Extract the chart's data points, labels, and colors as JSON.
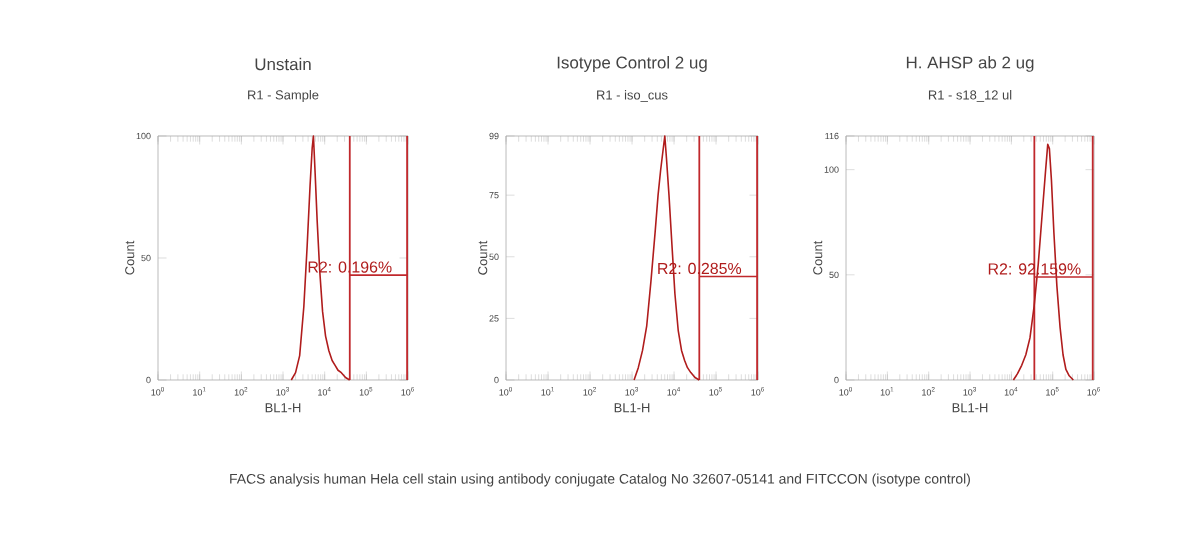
{
  "chart_data": [
    {
      "type": "line",
      "title": "Unstain",
      "subtitle": "R1 - Sample",
      "xlabel": "BL1-H",
      "ylabel": "Count",
      "log": "x",
      "xlim": [
        1,
        1000000
      ],
      "ylim": [
        0,
        100
      ],
      "xticks": [
        {
          "value": 1,
          "label": "10$^{0}$"
        },
        {
          "value": 10,
          "label": "10$^{1}$"
        },
        {
          "value": 100,
          "label": "10$^{2}$"
        },
        {
          "value": 1000,
          "label": "10$^{3}$"
        },
        {
          "value": 10000,
          "label": "10$^{4}$"
        },
        {
          "value": 100000,
          "label": "10$^{5}$"
        },
        {
          "value": 1000000,
          "label": "10$^{6}$"
        }
      ],
      "yticks": [
        0,
        50,
        100
      ],
      "series": [
        {
          "color": "#b01c1c",
          "x": [
            1580,
            2000,
            2510,
            3160,
            3800,
            4470,
            5010,
            5370,
            5890,
            6610,
            7590,
            8910,
            10500,
            12600,
            15100,
            17800,
            20900,
            25100,
            31600,
            39800
          ],
          "values": [
            0,
            3,
            10,
            30,
            55,
            80,
            95,
            100,
            85,
            65,
            45,
            28,
            18,
            12,
            8,
            6,
            4,
            3,
            1,
            0
          ]
        },
        {
          "color": "#c0282c",
          "x": [
            40000,
            950000
          ],
          "values": [
            43,
            43
          ]
        }
      ],
      "ref_lines": [
        {
          "axis": "x",
          "value": 40000,
          "color": "#c0282c"
        },
        {
          "axis": "x",
          "value": 950000,
          "color": "#c0282c"
        }
      ],
      "annotations": [
        "R2: 0.196%"
      ]
    },
    {
      "type": "line",
      "title": "Isotype Control 2 ug",
      "subtitle": "R1 - iso_cus",
      "xlabel": "BL1-H",
      "ylabel": "Count",
      "log": "x",
      "xlim": [
        1,
        1000000
      ],
      "ylim": [
        0,
        99
      ],
      "xticks": [
        {
          "value": 1,
          "label": "10$^{0}$"
        },
        {
          "value": 10,
          "label": "10$^{1}$"
        },
        {
          "value": 100,
          "label": "10$^{2}$"
        },
        {
          "value": 1000,
          "label": "10$^{3}$"
        },
        {
          "value": 10000,
          "label": "10$^{4}$"
        },
        {
          "value": 100000,
          "label": "10$^{5}$"
        },
        {
          "value": 1000000,
          "label": "10$^{6}$"
        }
      ],
      "yticks": [
        0,
        25,
        50,
        75,
        99
      ],
      "series": [
        {
          "color": "#b01c1c",
          "x": [
            1120,
            1410,
            1780,
            2240,
            2820,
            3550,
            4170,
            4790,
            5370,
            6030,
            6610,
            7590,
            8910,
            10500,
            12600,
            15100,
            17800,
            20900,
            25100,
            31600,
            39800
          ],
          "values": [
            0,
            5,
            12,
            22,
            40,
            60,
            75,
            85,
            92,
            99,
            90,
            75,
            55,
            35,
            20,
            12,
            8,
            5,
            3,
            1,
            0
          ]
        },
        {
          "color": "#c0282c",
          "x": [
            40000,
            950000
          ],
          "values": [
            42,
            42
          ]
        }
      ],
      "ref_lines": [
        {
          "axis": "x",
          "value": 40000,
          "color": "#c0282c"
        },
        {
          "axis": "x",
          "value": 950000,
          "color": "#c0282c"
        }
      ],
      "annotations": [
        "R2: 0.285%"
      ]
    },
    {
      "type": "line",
      "title": "H. AHSP ab 2 ug",
      "subtitle": "R1 - s18_12 ul",
      "xlabel": "BL1-H",
      "ylabel": "Count",
      "log": "x",
      "xlim": [
        1,
        1000000
      ],
      "ylim": [
        0,
        116
      ],
      "xticks": [
        {
          "value": 1,
          "label": "10$^{0}$"
        },
        {
          "value": 10,
          "label": "10$^{1}$"
        },
        {
          "value": 100,
          "label": "10$^{2}$"
        },
        {
          "value": 1000,
          "label": "10$^{3}$"
        },
        {
          "value": 10000,
          "label": "10$^{4}$"
        },
        {
          "value": 100000,
          "label": "10$^{5}$"
        },
        {
          "value": 1000000,
          "label": "10$^{6}$"
        }
      ],
      "yticks": [
        0,
        50,
        100,
        116
      ],
      "series": [
        {
          "color": "#b01c1c",
          "x": [
            11200,
            14100,
            17800,
            22400,
            28200,
            35500,
            44700,
            56200,
            67600,
            75900,
            83200,
            93300,
            107000,
            126000,
            151000,
            178000,
            209000,
            251000,
            316000
          ],
          "values": [
            0,
            3,
            7,
            12,
            20,
            35,
            55,
            80,
            100,
            112,
            110,
            95,
            70,
            45,
            25,
            12,
            5,
            2,
            0
          ]
        },
        {
          "color": "#c0282c",
          "x": [
            36000,
            930000
          ],
          "values": [
            49,
            49
          ]
        }
      ],
      "ref_lines": [
        {
          "axis": "x",
          "value": 36000,
          "color": "#c0282c"
        },
        {
          "axis": "x",
          "value": 930000,
          "color": "#c0282c"
        }
      ],
      "annotations": [
        "R2: 92.159%",
        "FACS analysis human Hela cell stain using antibody conjugate Catalog No 32607-05141 and FITCCON (isotype control)"
      ]
    }
  ]
}
